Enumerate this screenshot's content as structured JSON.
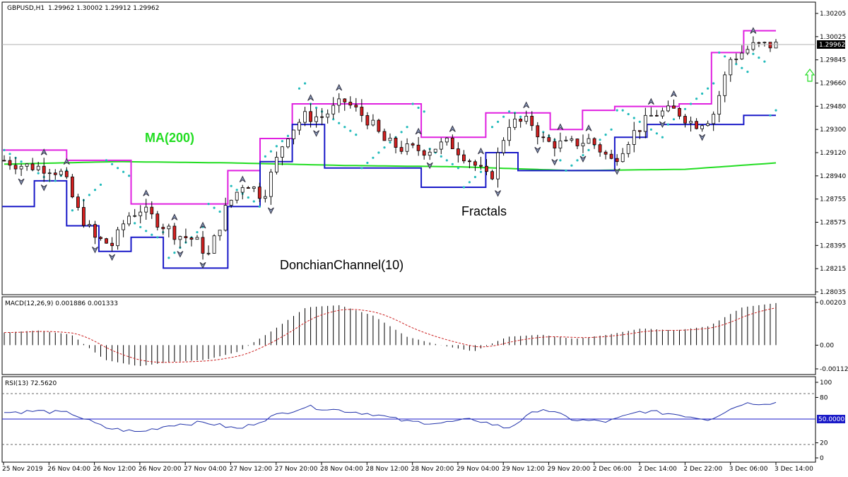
{
  "header": {
    "symbol": "GBPUSD,H1",
    "ohlc": "1.29962 1.30002 1.29912 1.29962"
  },
  "annotations": {
    "ma": "MA(200)",
    "donchian": "DonchianChannel(10)",
    "fractals": "Fractals"
  },
  "colors": {
    "bull": "#ffffff",
    "bear": "#d42020",
    "donchian_upper": "#e020e0",
    "donchian_lower": "#1a1ac8",
    "ma": "#22dd22",
    "sar": "#22bbbb",
    "macd_signal": "#cc2222",
    "rsi_line": "#2233aa",
    "buy_arrow": "#22dd22"
  },
  "price_panel": {
    "y_ticks": [
      "1.30205",
      "1.30025",
      "1.29845",
      "1.29660",
      "1.29480",
      "1.29300",
      "1.29120",
      "1.28940",
      "1.28755",
      "1.28575",
      "1.28395",
      "1.28215",
      "1.28035"
    ],
    "current_price": "1.29962"
  },
  "macd_panel": {
    "label": "MACD(12,26,9) 0.001886 0.001333",
    "y_ticks": [
      "0.00203",
      "0.00",
      "-0.001127"
    ]
  },
  "rsi_panel": {
    "label": "RSI(13) 72.5620",
    "y_ticks": [
      "100",
      "80",
      "20",
      "0"
    ],
    "mid_badge": "50.0000"
  },
  "x_ticks": [
    "25 Nov 2019",
    "26 Nov 04:00",
    "26 Nov 12:00",
    "26 Nov 20:00",
    "27 Nov 04:00",
    "27 Nov 12:00",
    "27 Nov 20:00",
    "28 Nov 04:00",
    "28 Nov 12:00",
    "28 Nov 20:00",
    "29 Nov 04:00",
    "29 Nov 12:00",
    "29 Nov 20:00",
    "2 Dec 06:00",
    "2 Dec 14:00",
    "2 Dec 22:00",
    "3 Dec 06:00",
    "3 Dec 14:00"
  ],
  "chart_data": {
    "type": "line",
    "title": "GBPUSD,H1",
    "price_range": [
      1.2795,
      1.3029
    ],
    "series": [
      {
        "name": "MA(200)",
        "x": [
          0,
          20,
          40,
          60,
          80,
          100,
          120,
          136
        ],
        "values": [
          1.2903,
          1.2905,
          1.2904,
          1.2902,
          1.2901,
          1.2898,
          1.2899,
          1.2904
        ]
      },
      {
        "name": "DonchianChannel(10)",
        "upper": [
          1.2914,
          1.2914,
          1.2906,
          1.2906,
          1.2872,
          1.2872,
          1.2872,
          1.2898,
          1.2923,
          1.295,
          1.295,
          1.295,
          1.295,
          1.2924,
          1.2924,
          1.2943,
          1.2943,
          1.293,
          1.2945,
          1.2948,
          1.2948,
          1.295,
          1.299,
          1.3007
        ],
        "lower": [
          1.287,
          1.289,
          1.2855,
          1.2835,
          1.2846,
          1.2822,
          1.2822,
          1.287,
          1.2905,
          1.2934,
          1.29,
          1.29,
          1.29,
          1.2885,
          1.2885,
          1.2912,
          1.2898,
          1.2898,
          1.2898,
          1.2924,
          1.2934,
          1.2934,
          1.2934,
          1.2941
        ]
      },
      {
        "name": "MACD(12,26,9)",
        "values": [
          0.0006,
          0.0007,
          0.0005,
          -0.0007,
          -0.001,
          -0.0008,
          -0.0007,
          -0.0003,
          0.0007,
          0.0018,
          0.0019,
          0.0014,
          0.0004,
          0.0,
          -0.0003,
          0.0004,
          0.0005,
          0.0003,
          0.0005,
          0.0008,
          0.0007,
          0.0009,
          0.0018,
          0.002
        ]
      },
      {
        "name": "RSI(13)",
        "values": [
          60,
          62,
          59,
          40,
          34,
          44,
          47,
          38,
          55,
          68,
          63,
          58,
          48,
          46,
          51,
          39,
          66,
          50,
          48,
          62,
          58,
          51,
          72,
          73
        ]
      }
    ]
  }
}
